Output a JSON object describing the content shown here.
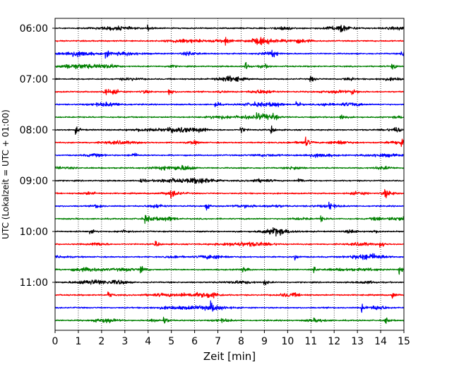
{
  "chart_data": {
    "type": "line",
    "title": "",
    "xlabel": "Zeit  [min]",
    "ylabel": "UTC (Lokalzeit = UTC + 01:00)",
    "xlim": [
      0,
      15
    ],
    "xticks": [
      0,
      1,
      2,
      3,
      4,
      5,
      6,
      7,
      8,
      9,
      10,
      11,
      12,
      13,
      14,
      15
    ],
    "yticks": [
      "06:00",
      "07:00",
      "08:00",
      "09:00",
      "10:00",
      "11:00"
    ],
    "grid": "vertical dotted",
    "series_color_cycle": [
      "#000000",
      "#ff0000",
      "#0000ff",
      "#008000"
    ],
    "trace_interval_minutes": 15,
    "traces": [
      {
        "start": "06:00",
        "color": "#000000",
        "events_min": [
          4.0,
          12.3
        ]
      },
      {
        "start": "06:15",
        "color": "#ff0000",
        "events_min": [
          7.3
        ]
      },
      {
        "start": "06:30",
        "color": "#0000ff",
        "events_min": [
          2.2,
          9.3,
          14.9
        ]
      },
      {
        "start": "06:45",
        "color": "#008000",
        "events_min": [
          8.2,
          14.5
        ]
      },
      {
        "start": "07:00",
        "color": "#000000",
        "events_min": [
          11.0
        ]
      },
      {
        "start": "07:15",
        "color": "#ff0000",
        "events_min": [
          2.1,
          4.9,
          12.8
        ]
      },
      {
        "start": "07:30",
        "color": "#0000ff",
        "events_min": [
          6.9,
          10.4
        ]
      },
      {
        "start": "07:45",
        "color": "#008000",
        "events_min": [
          8.7,
          9.4,
          12.3
        ]
      },
      {
        "start": "08:00",
        "color": "#000000",
        "events_min": [
          0.9,
          8.0,
          9.3,
          14.6
        ]
      },
      {
        "start": "08:15",
        "color": "#ff0000",
        "events_min": [
          10.8,
          14.9
        ]
      },
      {
        "start": "08:30",
        "color": "#0000ff",
        "events_min": []
      },
      {
        "start": "08:45",
        "color": "#008000",
        "events_min": []
      },
      {
        "start": "09:00",
        "color": "#000000",
        "events_min": [
          3.7,
          10.5
        ]
      },
      {
        "start": "09:15",
        "color": "#ff0000",
        "events_min": [
          5.0,
          14.2
        ]
      },
      {
        "start": "09:30",
        "color": "#0000ff",
        "events_min": [
          6.5,
          11.8
        ]
      },
      {
        "start": "09:45",
        "color": "#008000",
        "events_min": [
          3.9,
          11.4
        ]
      },
      {
        "start": "10:00",
        "color": "#000000",
        "events_min": [
          1.5,
          9.4
        ]
      },
      {
        "start": "10:15",
        "color": "#ff0000",
        "events_min": [
          4.3,
          14.0
        ]
      },
      {
        "start": "10:30",
        "color": "#0000ff",
        "events_min": [
          10.3
        ]
      },
      {
        "start": "10:45",
        "color": "#008000",
        "events_min": [
          3.7,
          11.1,
          14.8
        ]
      },
      {
        "start": "11:00",
        "color": "#000000",
        "events_min": [
          9.0
        ]
      },
      {
        "start": "11:15",
        "color": "#ff0000",
        "events_min": [
          2.3,
          14.5
        ]
      },
      {
        "start": "11:30",
        "color": "#0000ff",
        "events_min": [
          6.7,
          13.2
        ]
      },
      {
        "start": "11:45",
        "color": "#008000",
        "events_min": [
          4.7,
          14.2
        ]
      }
    ]
  }
}
